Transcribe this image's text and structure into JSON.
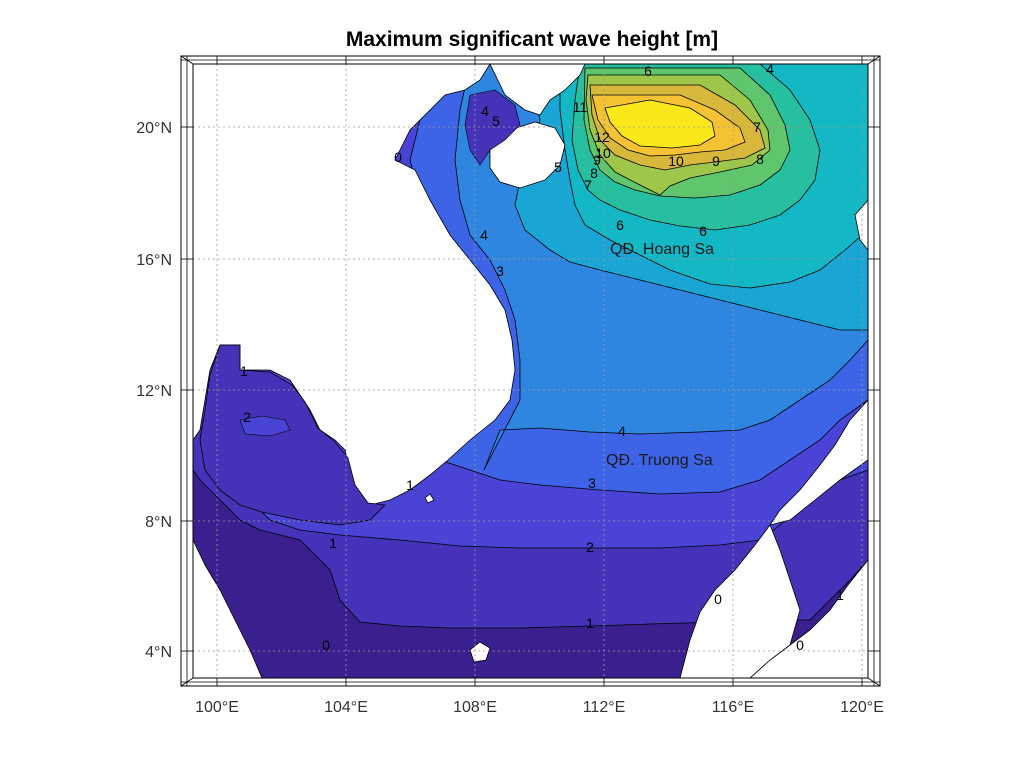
{
  "title": "Maximum significant wave height [m]",
  "map": {
    "lon_range": [
      99.2,
      120.4
    ],
    "lat_range": [
      3.1,
      22.0
    ],
    "lon_ticks": [
      "100°E",
      "104°E",
      "108°E",
      "112°E",
      "116°E",
      "120°E"
    ],
    "lat_ticks": [
      "4°N",
      "8°N",
      "12°N",
      "16°N",
      "20°N"
    ],
    "places": [
      {
        "name": "QĐ. Hoang Sa",
        "lon": 112.5,
        "lat": 16.3
      },
      {
        "name": "QĐ. Truong Sa",
        "lon": 112.4,
        "lat": 10.0
      }
    ],
    "contour_labels": [
      "0",
      "1",
      "2",
      "3",
      "4",
      "5",
      "6",
      "7",
      "8",
      "9",
      "10",
      "11",
      "12"
    ],
    "colors": {
      "land": "#ffffff",
      "h0": "#3a1f8f",
      "h1": "#4433b8",
      "h2": "#4a44d6",
      "h3": "#3d63e6",
      "h4": "#2f86e0",
      "h5": "#1aa6d4",
      "h6": "#14b8c4",
      "h7": "#26bf9f",
      "h8": "#5fc66e",
      "h9": "#9ec64a",
      "h10": "#d8b83a",
      "h11": "#f4c233",
      "h12": "#fbe81a"
    }
  }
}
